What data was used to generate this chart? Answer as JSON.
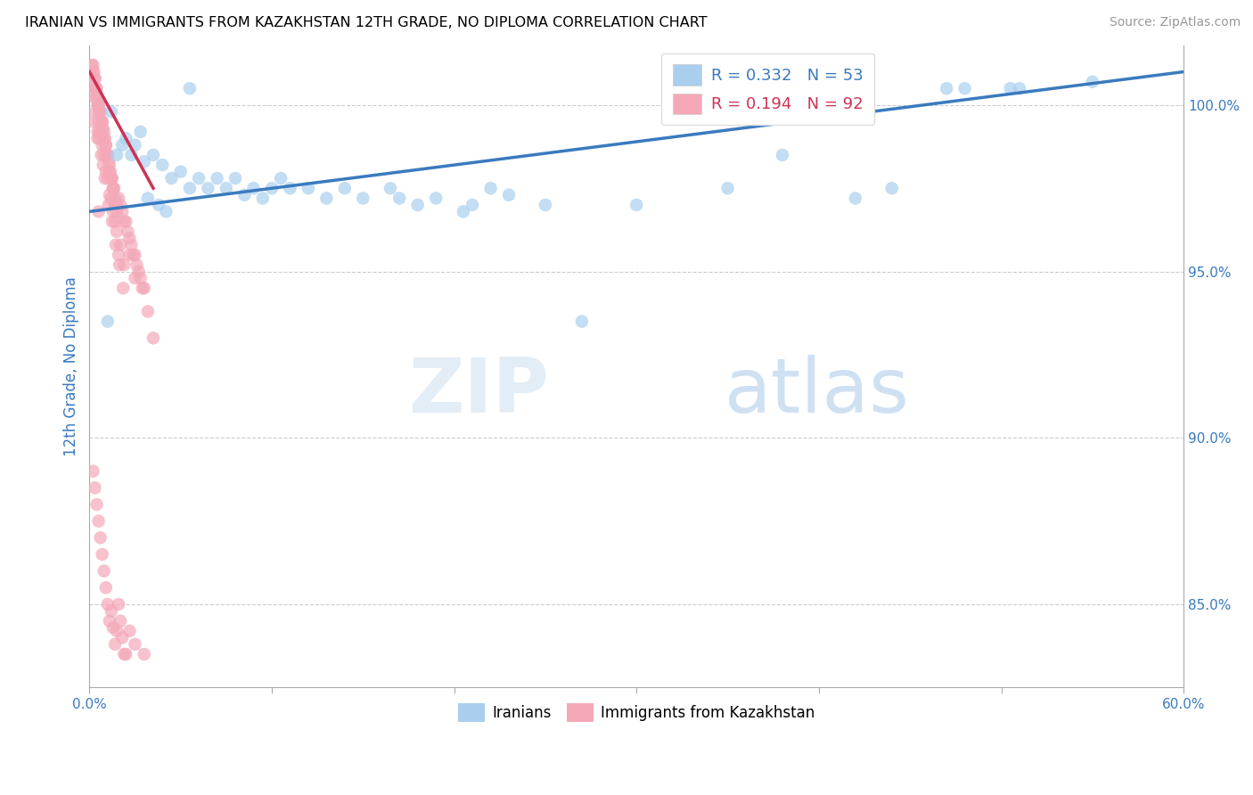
{
  "title": "IRANIAN VS IMMIGRANTS FROM KAZAKHSTAN 12TH GRADE, NO DIPLOMA CORRELATION CHART",
  "source": "Source: ZipAtlas.com",
  "ylabel": "12th Grade, No Diploma",
  "x_min": 0.0,
  "x_max": 60.0,
  "y_min": 82.5,
  "y_max": 101.8,
  "legend_r1": "R = 0.332",
  "legend_n1": "N = 53",
  "legend_r2": "R = 0.194",
  "legend_n2": "N = 92",
  "color_iranian": "#aacfee",
  "color_kazakh": "#f4a8b8",
  "color_trend_iranian": "#3a7abf",
  "color_trend_kazakh": "#cc3355",
  "color_grid": "#cccccc",
  "background_color": "#ffffff",
  "watermark_zip": "ZIP",
  "watermark_atlas": "atlas",
  "iranians_x": [
    1.2,
    2.8,
    5.5,
    1.5,
    1.8,
    2.0,
    2.3,
    2.5,
    3.0,
    3.5,
    4.0,
    4.5,
    5.0,
    5.5,
    6.0,
    6.5,
    7.0,
    7.5,
    8.0,
    8.5,
    9.0,
    9.5,
    10.0,
    10.5,
    11.0,
    12.0,
    13.0,
    14.0,
    15.0,
    16.5,
    17.0,
    18.0,
    19.0,
    20.5,
    21.0,
    22.0,
    23.0,
    25.0,
    30.0,
    35.0,
    38.0,
    42.0,
    44.0,
    47.0,
    48.0,
    50.5,
    51.0,
    55.0,
    1.0,
    3.2,
    3.8,
    4.2,
    27.0
  ],
  "iranians_y": [
    99.8,
    99.2,
    100.5,
    98.5,
    98.8,
    99.0,
    98.5,
    98.8,
    98.3,
    98.5,
    98.2,
    97.8,
    98.0,
    97.5,
    97.8,
    97.5,
    97.8,
    97.5,
    97.8,
    97.3,
    97.5,
    97.2,
    97.5,
    97.8,
    97.5,
    97.5,
    97.2,
    97.5,
    97.2,
    97.5,
    97.2,
    97.0,
    97.2,
    96.8,
    97.0,
    97.5,
    97.3,
    97.0,
    97.0,
    97.5,
    98.5,
    97.2,
    97.5,
    100.5,
    100.5,
    100.5,
    100.5,
    100.7,
    93.5,
    97.2,
    97.0,
    96.8,
    93.5
  ],
  "kazakh_x": [
    0.2,
    0.25,
    0.3,
    0.35,
    0.4,
    0.45,
    0.5,
    0.55,
    0.6,
    0.65,
    0.7,
    0.75,
    0.8,
    0.85,
    0.9,
    0.95,
    1.0,
    1.05,
    1.1,
    1.15,
    1.2,
    1.25,
    1.3,
    1.35,
    1.4,
    1.5,
    1.6,
    1.7,
    1.8,
    1.9,
    2.0,
    2.1,
    2.2,
    2.3,
    2.4,
    2.5,
    2.6,
    2.7,
    2.8,
    2.9,
    3.0,
    3.2,
    3.5,
    0.3,
    0.5,
    0.7,
    0.9,
    1.1,
    1.3,
    1.5,
    1.7,
    1.9,
    0.4,
    0.6,
    0.8,
    1.0,
    1.2,
    1.4,
    1.6,
    0.35,
    0.55,
    0.75,
    2.2,
    2.5,
    0.45,
    0.65,
    0.85,
    1.05,
    1.25,
    1.45,
    1.65,
    1.85,
    0.2,
    0.3,
    0.4,
    0.5,
    0.6,
    0.7,
    0.8,
    0.9,
    1.0,
    1.1,
    1.2,
    1.3,
    1.4,
    1.5,
    0.25,
    0.45,
    0.15,
    0.55,
    0.35,
    0.5
  ],
  "kazakh_y": [
    101.2,
    101.0,
    100.8,
    100.5,
    100.3,
    100.0,
    100.0,
    99.8,
    99.8,
    99.5,
    99.5,
    99.3,
    99.0,
    99.0,
    98.8,
    98.5,
    98.5,
    98.3,
    98.0,
    98.0,
    97.8,
    97.8,
    97.5,
    97.5,
    97.2,
    97.0,
    97.2,
    97.0,
    96.8,
    96.5,
    96.5,
    96.2,
    96.0,
    95.8,
    95.5,
    95.5,
    95.2,
    95.0,
    94.8,
    94.5,
    94.5,
    93.8,
    93.0,
    100.5,
    99.5,
    98.8,
    98.0,
    97.3,
    96.8,
    96.2,
    95.8,
    95.2,
    100.2,
    99.2,
    98.5,
    97.8,
    97.2,
    96.5,
    95.5,
    99.8,
    99.0,
    98.2,
    95.5,
    94.8,
    99.2,
    98.5,
    97.8,
    97.0,
    96.5,
    95.8,
    95.2,
    94.5,
    101.0,
    100.8,
    100.5,
    100.0,
    99.8,
    99.5,
    99.2,
    98.8,
    98.5,
    98.2,
    97.8,
    97.5,
    97.0,
    96.8,
    99.5,
    99.0,
    101.2,
    99.2,
    100.2,
    96.8
  ],
  "kazakh_low_x": [
    0.2,
    0.3,
    0.4,
    0.5,
    0.6,
    0.7,
    0.8,
    0.9,
    1.0,
    1.1,
    1.2,
    1.3,
    1.4,
    1.5,
    1.6,
    1.7,
    1.8,
    1.9,
    2.0,
    2.2,
    2.5,
    3.0
  ],
  "kazakh_low_y": [
    89.0,
    88.5,
    88.0,
    87.5,
    87.0,
    86.5,
    86.0,
    85.5,
    85.0,
    84.5,
    84.8,
    84.3,
    83.8,
    84.2,
    85.0,
    84.5,
    84.0,
    83.5,
    83.5,
    84.2,
    83.8,
    83.5
  ]
}
